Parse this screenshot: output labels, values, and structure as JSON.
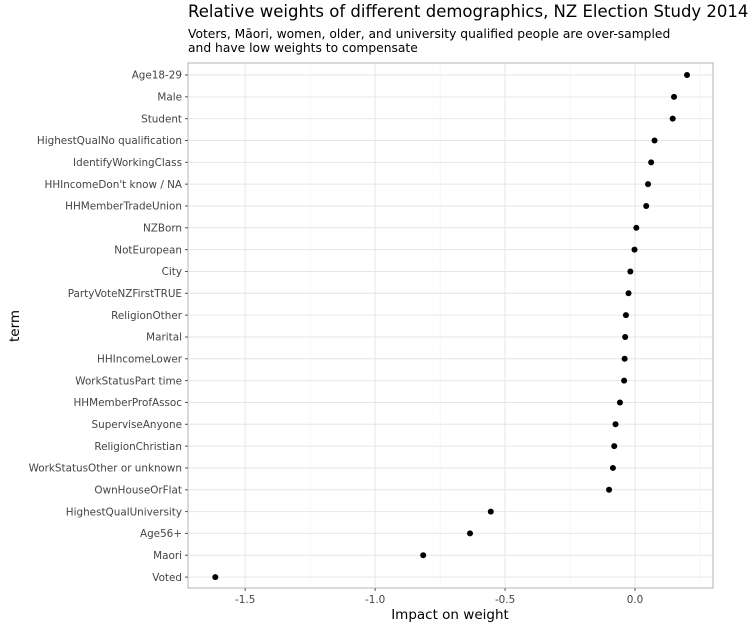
{
  "chart_data": {
    "type": "scatter",
    "title": "Relative weights of different demographics, NZ Election Study 2014",
    "subtitle": [
      "Voters, Māori, women, older, and university qualified people are over-sampled",
      "and have low weights to compensate"
    ],
    "xlabel": "Impact on weight",
    "ylabel": "term",
    "xlim": [
      -1.72,
      0.3
    ],
    "x_ticks": [
      -1.5,
      -1.0,
      -0.5,
      0.0
    ],
    "x_tick_labels": [
      "-1.5",
      "-1.0",
      "-0.5",
      "0.0"
    ],
    "grid": true,
    "points": [
      {
        "term": "Age18-29",
        "value": 0.2
      },
      {
        "term": "Male",
        "value": 0.15
      },
      {
        "term": "Student",
        "value": 0.145
      },
      {
        "term": "HighestQualNo qualification",
        "value": 0.075
      },
      {
        "term": "IdentifyWorkingClass",
        "value": 0.062
      },
      {
        "term": "HHIncomeDon't know / NA",
        "value": 0.05
      },
      {
        "term": "HHMemberTradeUnion",
        "value": 0.043
      },
      {
        "term": "NZBorn",
        "value": 0.005
      },
      {
        "term": "NotEuropean",
        "value": -0.002
      },
      {
        "term": "City",
        "value": -0.018
      },
      {
        "term": "PartyVoteNZFirstTRUE",
        "value": -0.025
      },
      {
        "term": "ReligionOther",
        "value": -0.035
      },
      {
        "term": "Marital",
        "value": -0.038
      },
      {
        "term": "HHIncomeLower",
        "value": -0.04
      },
      {
        "term": "WorkStatusPart time",
        "value": -0.042
      },
      {
        "term": "HHMemberProfAssoc",
        "value": -0.058
      },
      {
        "term": "SuperviseAnyone",
        "value": -0.075
      },
      {
        "term": "ReligionChristian",
        "value": -0.08
      },
      {
        "term": "WorkStatusOther or unknown",
        "value": -0.085
      },
      {
        "term": "OwnHouseOrFlat",
        "value": -0.1
      },
      {
        "term": "HighestQualUniversity",
        "value": -0.555
      },
      {
        "term": "Age56+",
        "value": -0.635
      },
      {
        "term": "Maori",
        "value": -0.815
      },
      {
        "term": "Voted",
        "value": -1.615
      }
    ]
  }
}
